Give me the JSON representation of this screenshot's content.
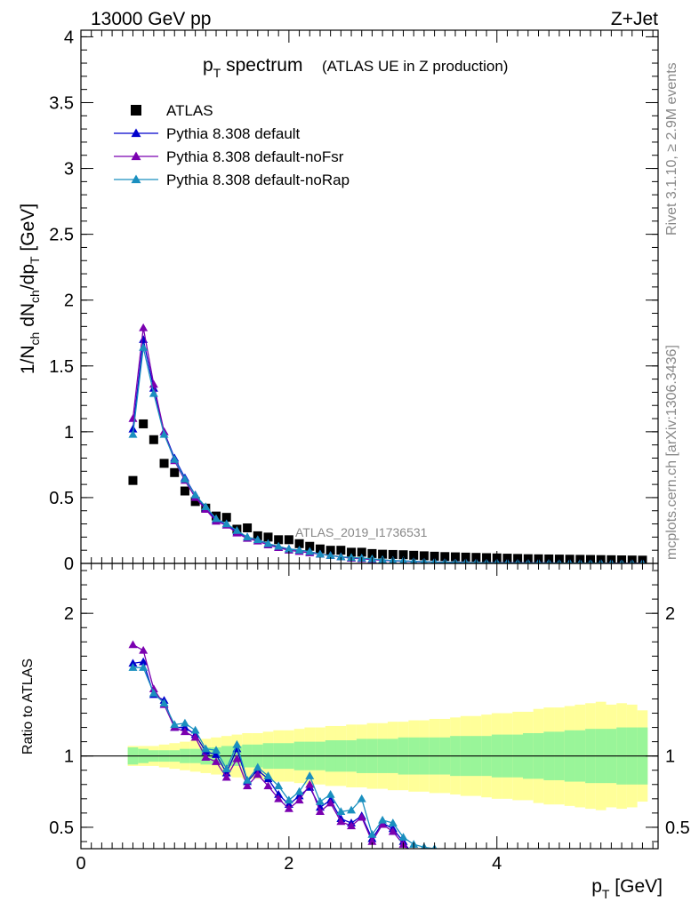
{
  "header": {
    "energy_label": "13000 GeV pp",
    "process_label": "Z+Jet"
  },
  "side": {
    "rivet_label": "Rivet 3.1.10, ≥ 2.9M events",
    "source_label": "mcplots.cern.ch [arXiv:1306.3436]"
  },
  "colors": {
    "atlas": "#000000",
    "default": "#0000cc",
    "noFsr": "#7a00b0",
    "noRap": "#1a8fbf",
    "band_inner": "#99f599",
    "band_outer": "#ffff99"
  },
  "chart_data": [
    {
      "type": "scatter",
      "panel": "main",
      "title_main": "p",
      "title_sub": "T",
      "title_rest": " spectrum",
      "title_paren": "(ATLAS UE in Z production)",
      "ylabel": "1/N_ch dN_ch/dp_T [GeV]",
      "watermark": "ATLAS_2019_I1736531",
      "xlim": [
        0,
        5.55
      ],
      "ylim": [
        0,
        4.05
      ],
      "yticks": [
        0,
        0.5,
        1,
        1.5,
        2,
        2.5,
        3,
        3.5,
        4
      ],
      "ytick_labels": [
        "0",
        "0.5",
        "1",
        "1.5",
        "2",
        "2.5",
        "3",
        "3.5",
        "4"
      ],
      "x": [
        0.5,
        0.6,
        0.7,
        0.8,
        0.9,
        1.0,
        1.1,
        1.2,
        1.3,
        1.4,
        1.5,
        1.6,
        1.7,
        1.8,
        1.9,
        2.0,
        2.1,
        2.2,
        2.3,
        2.4,
        2.5,
        2.6,
        2.7,
        2.8,
        2.9,
        3.0,
        3.1,
        3.2,
        3.3,
        3.4,
        3.5,
        3.6,
        3.7,
        3.8,
        3.9,
        4.0,
        4.1,
        4.2,
        4.3,
        4.4,
        4.5,
        4.6,
        4.7,
        4.8,
        4.9,
        5.0,
        5.1,
        5.2,
        5.3,
        5.4
      ],
      "legend": [
        "ATLAS",
        "Pythia 8.308 default",
        "Pythia 8.308 default-noFsr",
        "Pythia 8.308 default-noRap"
      ],
      "series": [
        {
          "name": "ATLAS",
          "marker": "square",
          "values": [
            0.63,
            1.06,
            0.94,
            0.76,
            0.69,
            0.55,
            0.47,
            0.42,
            0.36,
            0.35,
            0.26,
            0.27,
            0.21,
            0.2,
            0.18,
            0.18,
            0.15,
            0.13,
            0.11,
            0.1,
            0.1,
            0.085,
            0.085,
            0.075,
            0.07,
            0.068,
            0.066,
            0.062,
            0.058,
            0.055,
            0.052,
            0.05,
            0.048,
            0.046,
            0.044,
            0.042,
            0.04,
            0.038,
            0.036,
            0.035,
            0.034,
            0.033,
            0.032,
            0.031,
            0.03,
            0.029,
            0.028,
            0.027,
            0.026,
            0.025
          ]
        },
        {
          "name": "Pythia 8.308 default",
          "marker": "triangle",
          "values": [
            1.02,
            1.7,
            1.33,
            1.0,
            0.8,
            0.65,
            0.52,
            0.42,
            0.33,
            0.3,
            0.24,
            0.2,
            0.18,
            0.15,
            0.12,
            0.11,
            0.1,
            0.09,
            0.07,
            0.06,
            0.05,
            0.04,
            0.04,
            0.03,
            0.025,
            0.02,
            0.018,
            0.015,
            0.012,
            0.01,
            0.009,
            0.008,
            0.007,
            0.006,
            0.005,
            0.005,
            0.004,
            0.004,
            0.003,
            0.003,
            0.003,
            0.002,
            0.002,
            0.002,
            0.002,
            0.002,
            0.001,
            0.001,
            0.001,
            0.001
          ]
        },
        {
          "name": "Pythia 8.308 default-noFsr",
          "marker": "triangle",
          "values": [
            1.1,
            1.79,
            1.36,
            1.0,
            0.78,
            0.63,
            0.5,
            0.41,
            0.32,
            0.29,
            0.23,
            0.19,
            0.17,
            0.14,
            0.12,
            0.1,
            0.09,
            0.08,
            0.07,
            0.06,
            0.05,
            0.04,
            0.035,
            0.03,
            0.025,
            0.02,
            0.017,
            0.014,
            0.012,
            0.01,
            0.009,
            0.008,
            0.007,
            0.006,
            0.005,
            0.005,
            0.004,
            0.004,
            0.003,
            0.003,
            0.003,
            0.002,
            0.002,
            0.002,
            0.002,
            0.002,
            0.001,
            0.001,
            0.001,
            0.001
          ]
        },
        {
          "name": "Pythia 8.308 default-noRap",
          "marker": "triangle",
          "values": [
            0.98,
            1.64,
            1.29,
            0.98,
            0.79,
            0.64,
            0.52,
            0.43,
            0.34,
            0.3,
            0.25,
            0.2,
            0.18,
            0.15,
            0.13,
            0.11,
            0.1,
            0.09,
            0.07,
            0.06,
            0.05,
            0.045,
            0.04,
            0.035,
            0.028,
            0.022,
            0.019,
            0.016,
            0.013,
            0.011,
            0.009,
            0.008,
            0.007,
            0.006,
            0.005,
            0.005,
            0.004,
            0.004,
            0.003,
            0.003,
            0.003,
            0.002,
            0.002,
            0.002,
            0.002,
            0.002,
            0.001,
            0.001,
            0.001,
            0.001
          ]
        }
      ]
    },
    {
      "type": "line",
      "panel": "ratio",
      "ylabel": "Ratio to ATLAS",
      "xlabel": "p_T [GeV]",
      "xlabel_main": "p",
      "xlabel_sub": "T",
      "xlabel_rest": " [GeV]",
      "xlim": [
        0,
        5.55
      ],
      "ylim": [
        0.35,
        2.35
      ],
      "yticks": [
        0.5,
        1,
        2
      ],
      "ytick_labels": [
        "0.5",
        "1",
        "2"
      ],
      "xticks": [
        0,
        2,
        4
      ],
      "xtick_labels": [
        "0",
        "2",
        "4"
      ],
      "x": [
        0.5,
        0.6,
        0.7,
        0.8,
        0.9,
        1.0,
        1.1,
        1.2,
        1.3,
        1.4,
        1.5,
        1.6,
        1.7,
        1.8,
        1.9,
        2.0,
        2.1,
        2.2,
        2.3,
        2.4,
        2.5,
        2.6,
        2.7,
        2.8,
        2.9,
        3.0,
        3.1,
        3.2,
        3.3,
        3.4
      ],
      "band_inner_halfwidth": [
        0.06,
        0.05,
        0.04,
        0.04,
        0.04,
        0.05,
        0.05,
        0.06,
        0.06,
        0.07,
        0.07,
        0.08,
        0.08,
        0.09,
        0.09,
        0.09,
        0.1,
        0.1,
        0.1,
        0.11,
        0.11,
        0.11,
        0.12,
        0.12,
        0.12,
        0.12,
        0.13,
        0.13,
        0.13,
        0.13,
        0.13,
        0.14,
        0.14,
        0.14,
        0.14,
        0.15,
        0.15,
        0.15,
        0.16,
        0.16,
        0.17,
        0.17,
        0.18,
        0.18,
        0.19,
        0.19,
        0.19,
        0.2,
        0.2,
        0.2
      ],
      "band_outer_halfwidth": [
        0.07,
        0.07,
        0.07,
        0.08,
        0.09,
        0.1,
        0.11,
        0.12,
        0.13,
        0.14,
        0.15,
        0.16,
        0.16,
        0.17,
        0.18,
        0.18,
        0.19,
        0.2,
        0.2,
        0.21,
        0.21,
        0.22,
        0.22,
        0.23,
        0.23,
        0.24,
        0.24,
        0.25,
        0.25,
        0.26,
        0.26,
        0.27,
        0.28,
        0.28,
        0.29,
        0.3,
        0.3,
        0.31,
        0.31,
        0.33,
        0.34,
        0.34,
        0.35,
        0.36,
        0.37,
        0.38,
        0.36,
        0.37,
        0.36,
        0.32
      ],
      "band_x": [
        0.5,
        0.6,
        0.7,
        0.8,
        0.9,
        1.0,
        1.1,
        1.2,
        1.3,
        1.4,
        1.5,
        1.6,
        1.7,
        1.8,
        1.9,
        2.0,
        2.1,
        2.2,
        2.3,
        2.4,
        2.5,
        2.6,
        2.7,
        2.8,
        2.9,
        3.0,
        3.1,
        3.2,
        3.3,
        3.4,
        3.5,
        3.6,
        3.7,
        3.8,
        3.9,
        4.0,
        4.1,
        4.2,
        4.3,
        4.4,
        4.5,
        4.6,
        4.7,
        4.8,
        4.9,
        5.0,
        5.1,
        5.2,
        5.3,
        5.4
      ],
      "series": [
        {
          "name": "Pythia 8.308 default",
          "values": [
            1.65,
            1.66,
            1.43,
            1.39,
            1.2,
            1.2,
            1.15,
            1.03,
            1.01,
            0.88,
            1.05,
            0.82,
            0.9,
            0.84,
            0.73,
            0.66,
            0.72,
            0.78,
            0.64,
            0.69,
            0.56,
            0.53,
            0.58,
            0.42,
            0.53,
            0.49,
            0.4,
            0.3,
            0.3,
            0.3
          ]
        },
        {
          "name": "Pythia 8.308 default-noFsr",
          "values": [
            1.78,
            1.74,
            1.47,
            1.36,
            1.2,
            1.17,
            1.13,
            0.99,
            0.96,
            0.85,
            0.98,
            0.79,
            0.87,
            0.79,
            0.7,
            0.63,
            0.69,
            0.8,
            0.61,
            0.67,
            0.54,
            0.51,
            0.57,
            0.4,
            0.52,
            0.47,
            0.38,
            0.3,
            0.3,
            0.3
          ]
        },
        {
          "name": "Pythia 8.308 default-noRap",
          "values": [
            1.62,
            1.62,
            1.44,
            1.37,
            1.22,
            1.23,
            1.18,
            1.05,
            1.04,
            0.91,
            1.08,
            0.83,
            0.92,
            0.86,
            0.79,
            0.69,
            0.75,
            0.86,
            0.68,
            0.73,
            0.61,
            0.62,
            0.7,
            0.45,
            0.55,
            0.53,
            0.43,
            0.38,
            0.36,
            0.35
          ]
        }
      ]
    }
  ]
}
